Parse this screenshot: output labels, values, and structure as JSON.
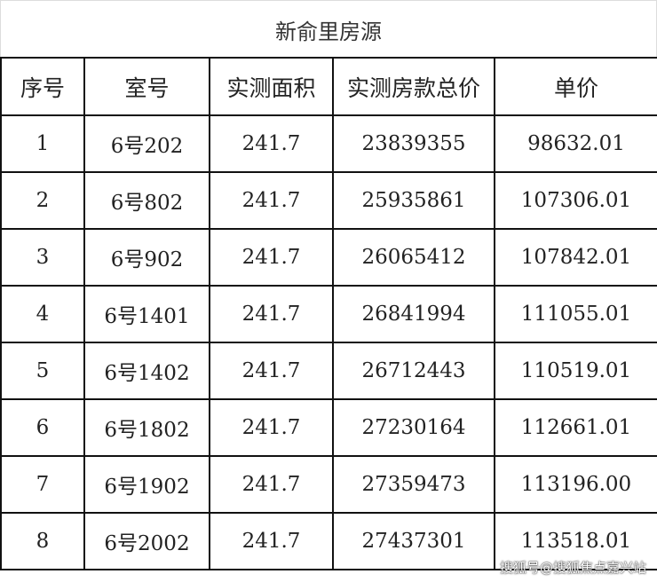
{
  "title": "新俞里房源",
  "columns": [
    "序号",
    "室号",
    "实测面积",
    "实测房款总价",
    "单价"
  ],
  "rows": [
    [
      "1",
      "6号202",
      "241.7",
      "23839355",
      "98632.01"
    ],
    [
      "2",
      "6号802",
      "241.7",
      "25935861",
      "107306.01"
    ],
    [
      "3",
      "6号902",
      "241.7",
      "26065412",
      "107842.01"
    ],
    [
      "4",
      "6号1401",
      "241.7",
      "26841994",
      "111055.01"
    ],
    [
      "5",
      "6号1402",
      "241.7",
      "26712443",
      "110519.01"
    ],
    [
      "6",
      "6号1802",
      "241.7",
      "27230164",
      "112661.01"
    ],
    [
      "7",
      "6号1902",
      "241.7",
      "27359473",
      "113196.00"
    ],
    [
      "8",
      "6号2002",
      "241.7",
      "27437301",
      "113518.01"
    ]
  ],
  "watermark": "搜狐号@搜狐焦点嘉兴站"
}
